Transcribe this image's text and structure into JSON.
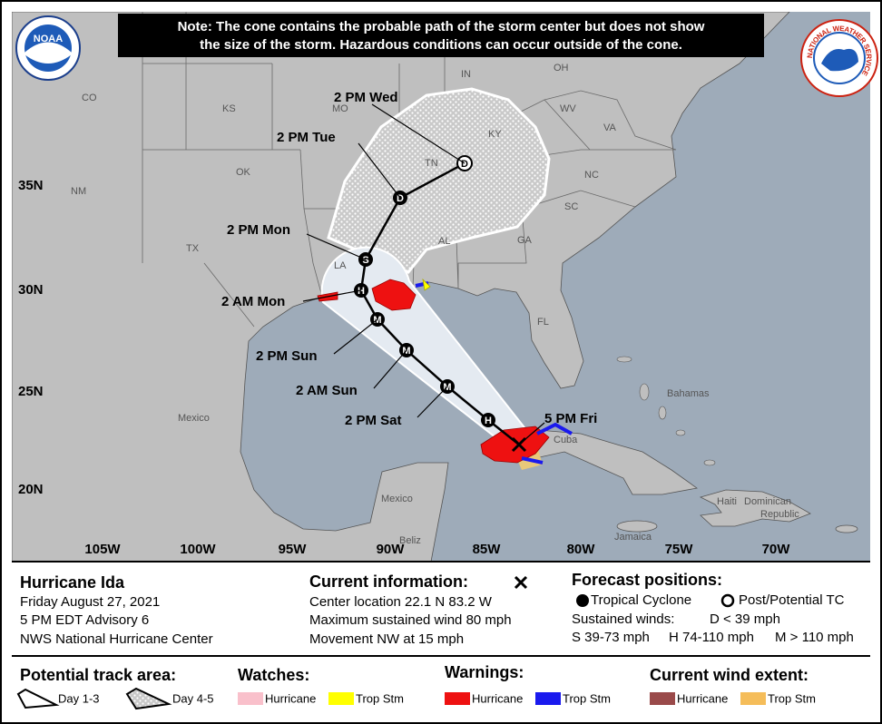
{
  "note": [
    "Note: The cone contains the probable path of the storm center but does not show",
    "the size of the storm. Hazardous conditions can occur outside of the cone."
  ],
  "logos": {
    "noaa": "NOAA",
    "nws": "NATIONAL WEATHER SERVICE"
  },
  "map": {
    "lat_labels": [
      "35N",
      "30N",
      "25N",
      "20N"
    ],
    "lon_labels": [
      "105W",
      "100W",
      "95W",
      "90W",
      "85W",
      "80W",
      "75W",
      "70W"
    ],
    "region_labels": [
      "CO",
      "KS",
      "MO",
      "IN",
      "OH",
      "KY",
      "WV",
      "VA",
      "OK",
      "NC",
      "SC",
      "TN",
      "AL",
      "GA",
      "LA",
      "TX",
      "NM",
      "FL",
      "Mexico",
      "Mexico",
      "Cuba",
      "Bahamas",
      "Haiti",
      "Dominican",
      "Republic",
      "Jamaica",
      "Beliz"
    ],
    "track_labels": [
      "2 PM Wed",
      "2 PM Tue",
      "2 PM Mon",
      "2 AM Mon",
      "2 PM Sun",
      "2 AM Sun",
      "2 PM Sat",
      "5 PM Fri"
    ],
    "point_letters": [
      "D",
      "D",
      "S",
      "H",
      "M",
      "M",
      "M",
      "H"
    ]
  },
  "info": {
    "storm": "Hurricane Ida",
    "lines": [
      "Friday August 27, 2021",
      "5 PM EDT Advisory 6",
      "NWS National Hurricane Center"
    ],
    "current_title": "Current information:",
    "current_lines": [
      "Center location 22.1 N 83.2 W",
      "Maximum sustained wind 80 mph",
      "Movement NW at 15 mph"
    ],
    "forecast_title": "Forecast positions:",
    "tropical_cyclone": "Tropical Cyclone",
    "post_tc": "Post/Potential TC",
    "sustained": "Sustained winds:",
    "d_def": "D < 39 mph",
    "s_def": "S 39-73 mph",
    "h_def": "H 74-110 mph",
    "m_def": "M > 110 mph"
  },
  "legend": {
    "track_title": "Potential track area:",
    "day13": "Day 1-3",
    "day45": "Day 4-5",
    "watches_title": "Watches:",
    "watch_hurricane": "Hurricane",
    "watch_ts": "Trop Stm",
    "warnings_title": "Warnings:",
    "warn_hurricane": "Hurricane",
    "warn_ts": "Trop Stm",
    "wind_title": "Current wind extent:",
    "wind_hurricane": "Hurricane",
    "wind_ts": "Trop Stm"
  }
}
